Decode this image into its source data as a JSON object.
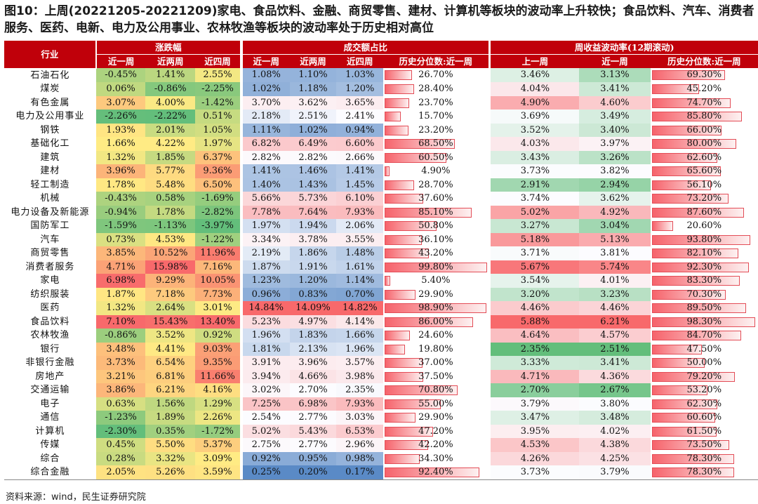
{
  "title": "图10：上周(20221205-20221209)家电、食品饮料、金融、商贸零售、建材、计算机等板块的波动率上升较快；食品饮料、汽车、消费者服务、医药、电新、电力及公用事业、农林牧渔等板块的波动率处于历史相对高位",
  "source": "资料来源：wind，民生证券研究院",
  "headers": {
    "industry": "行业",
    "group_change": "涨跌幅",
    "group_turnover": "成交额占比",
    "group_vol": "周收益波动率(12期滚动)",
    "change_cols": [
      "近一周",
      "近两周",
      "近四周"
    ],
    "turnover_cols": [
      "近一周",
      "近两周",
      "近四周",
      "历史分位数:近一周"
    ],
    "vol_cols": [
      "上一周",
      "近一周",
      "历史分位数:近一周"
    ]
  },
  "rows": [
    {
      "name": "石油石化",
      "c1": "-0.45%",
      "c2": "1.41%",
      "c4": "2.55%",
      "t1": "1.08%",
      "t2": "1.10%",
      "t4": "1.03%",
      "tp": "26.70%",
      "v0": "3.46%",
      "v1": "3.13%",
      "vp": "69.30%"
    },
    {
      "name": "煤炭",
      "c1": "0.06%",
      "c2": "-0.86%",
      "c4": "-2.25%",
      "t1": "1.02%",
      "t2": "1.18%",
      "t4": "1.20%",
      "tp": "28.40%",
      "v0": "4.04%",
      "v1": "3.41%",
      "vp": "45.20%"
    },
    {
      "name": "有色金属",
      "c1": "3.07%",
      "c2": "4.00%",
      "c4": "-1.42%",
      "t1": "3.70%",
      "t2": "3.62%",
      "t4": "3.65%",
      "tp": "23.70%",
      "v0": "4.90%",
      "v1": "4.60%",
      "vp": "74.70%"
    },
    {
      "name": "电力及公用事业",
      "c1": "-2.26%",
      "c2": "-2.22%",
      "c4": "0.51%",
      "t1": "2.18%",
      "t2": "2.51%",
      "t4": "2.41%",
      "tp": "15.70%",
      "v0": "3.69%",
      "v1": "3.49%",
      "vp": "85.80%"
    },
    {
      "name": "钢铁",
      "c1": "1.93%",
      "c2": "2.01%",
      "c4": "1.05%",
      "t1": "1.11%",
      "t2": "1.02%",
      "t4": "0.94%",
      "tp": "23.20%",
      "v0": "3.52%",
      "v1": "3.40%",
      "vp": "66.00%"
    },
    {
      "name": "基础化工",
      "c1": "1.66%",
      "c2": "4.22%",
      "c4": "1.97%",
      "t1": "6.82%",
      "t2": "6.49%",
      "t4": "6.60%",
      "tp": "68.50%",
      "v0": "4.03%",
      "v1": "3.97%",
      "vp": "80.00%"
    },
    {
      "name": "建筑",
      "c1": "1.32%",
      "c2": "1.85%",
      "c4": "6.37%",
      "t1": "2.82%",
      "t2": "2.82%",
      "t4": "2.66%",
      "tp": "60.50%",
      "v0": "3.43%",
      "v1": "3.26%",
      "vp": "62.60%"
    },
    {
      "name": "建材",
      "c1": "3.96%",
      "c2": "5.77%",
      "c4": "9.36%",
      "t1": "1.41%",
      "t2": "1.46%",
      "t4": "1.41%",
      "tp": "4.90%",
      "v0": "3.73%",
      "v1": "3.82%",
      "vp": "65.60%"
    },
    {
      "name": "轻工制造",
      "c1": "1.78%",
      "c2": "5.48%",
      "c4": "6.50%",
      "t1": "1.40%",
      "t2": "1.43%",
      "t4": "1.45%",
      "tp": "28.70%",
      "v0": "2.91%",
      "v1": "2.94%",
      "vp": "56.10%"
    },
    {
      "name": "机械",
      "c1": "-0.43%",
      "c2": "0.58%",
      "c4": "-1.69%",
      "t1": "5.66%",
      "t2": "5.73%",
      "t4": "6.10%",
      "tp": "37.60%",
      "v0": "3.74%",
      "v1": "3.62%",
      "vp": "73.20%"
    },
    {
      "name": "电力设备及新能源",
      "c1": "-0.94%",
      "c2": "1.78%",
      "c4": "-2.82%",
      "t1": "7.78%",
      "t2": "7.64%",
      "t4": "7.93%",
      "tp": "85.10%",
      "v0": "5.02%",
      "v1": "4.92%",
      "vp": "87.60%"
    },
    {
      "name": "国防军工",
      "c1": "-1.59%",
      "c2": "-1.13%",
      "c4": "-3.97%",
      "t1": "1.97%",
      "t2": "1.94%",
      "t4": "2.06%",
      "tp": "50.80%",
      "v0": "3.27%",
      "v1": "3.04%",
      "vp": "20.60%"
    },
    {
      "name": "汽车",
      "c1": "0.73%",
      "c2": "4.53%",
      "c4": "-1.22%",
      "t1": "3.34%",
      "t2": "3.78%",
      "t4": "3.55%",
      "tp": "36.10%",
      "v0": "5.18%",
      "v1": "5.13%",
      "vp": "93.80%"
    },
    {
      "name": "商贸零售",
      "c1": "3.85%",
      "c2": "10.52%",
      "c4": "11.96%",
      "t1": "2.19%",
      "t2": "1.86%",
      "t4": "1.48%",
      "tp": "43.20%",
      "v0": "3.71%",
      "v1": "3.81%",
      "vp": "82.10%"
    },
    {
      "name": "消费者服务",
      "c1": "4.71%",
      "c2": "15.98%",
      "c4": "7.16%",
      "t1": "1.87%",
      "t2": "1.91%",
      "t4": "1.61%",
      "tp": "99.80%",
      "v0": "5.67%",
      "v1": "5.74%",
      "vp": "92.30%"
    },
    {
      "name": "家电",
      "c1": "6.98%",
      "c2": "9.29%",
      "c4": "10.05%",
      "t1": "1.23%",
      "t2": "1.20%",
      "t4": "1.14%",
      "tp": "5.40%",
      "v0": "3.54%",
      "v1": "4.01%",
      "vp": "83.30%"
    },
    {
      "name": "纺织服装",
      "c1": "1.87%",
      "c2": "7.18%",
      "c4": "7.73%",
      "t1": "0.96%",
      "t2": "0.83%",
      "t4": "0.70%",
      "tp": "29.90%",
      "v0": "3.20%",
      "v1": "3.23%",
      "vp": "70.30%"
    },
    {
      "name": "医药",
      "c1": "1.32%",
      "c2": "2.64%",
      "c4": "3.01%",
      "t1": "14.84%",
      "t2": "14.09%",
      "t4": "14.82%",
      "tp": "98.90%",
      "v0": "4.46%",
      "v1": "4.46%",
      "vp": "89.50%"
    },
    {
      "name": "食品饮料",
      "c1": "7.10%",
      "c2": "15.43%",
      "c4": "13.40%",
      "t1": "5.23%",
      "t2": "4.97%",
      "t4": "4.14%",
      "tp": "86.00%",
      "v0": "5.88%",
      "v1": "6.21%",
      "vp": "98.30%"
    },
    {
      "name": "农林牧渔",
      "c1": "-0.86%",
      "c2": "3.52%",
      "c4": "0.92%",
      "t1": "1.96%",
      "t2": "1.83%",
      "t4": "1.66%",
      "tp": "24.60%",
      "v0": "4.64%",
      "v1": "4.57%",
      "vp": "84.70%"
    },
    {
      "name": "银行",
      "c1": "3.48%",
      "c2": "4.41%",
      "c4": "9.03%",
      "t1": "1.81%",
      "t2": "2.13%",
      "t4": "1.96%",
      "tp": "19.80%",
      "v0": "2.35%",
      "v1": "2.51%",
      "vp": "47.50%"
    },
    {
      "name": "非银行金融",
      "c1": "3.73%",
      "c2": "6.54%",
      "c4": "9.35%",
      "t1": "3.91%",
      "t2": "3.96%",
      "t4": "3.57%",
      "tp": "37.00%",
      "v0": "3.33%",
      "v1": "3.41%",
      "vp": "50.00%"
    },
    {
      "name": "房地产",
      "c1": "3.21%",
      "c2": "6.81%",
      "c4": "11.66%",
      "t1": "3.94%",
      "t2": "4.66%",
      "t4": "3.98%",
      "tp": "37.50%",
      "v0": "4.71%",
      "v1": "4.36%",
      "vp": "79.20%"
    },
    {
      "name": "交通运输",
      "c1": "3.86%",
      "c2": "6.21%",
      "c4": "4.16%",
      "t1": "3.02%",
      "t2": "2.70%",
      "t4": "2.35%",
      "tp": "70.80%",
      "v0": "2.70%",
      "v1": "2.67%",
      "vp": "53.20%"
    },
    {
      "name": "电子",
      "c1": "0.63%",
      "c2": "1.56%",
      "c4": "1.29%",
      "t1": "7.25%",
      "t2": "6.98%",
      "t4": "7.93%",
      "tp": "55.00%",
      "v0": "3.79%",
      "v1": "3.80%",
      "vp": "62.30%"
    },
    {
      "name": "通信",
      "c1": "-1.23%",
      "c2": "1.89%",
      "c4": "2.26%",
      "t1": "2.54%",
      "t2": "2.77%",
      "t4": "3.03%",
      "tp": "29.90%",
      "v0": "3.47%",
      "v1": "3.48%",
      "vp": "60.60%"
    },
    {
      "name": "计算机",
      "c1": "-2.30%",
      "c2": "0.35%",
      "c4": "-1.72%",
      "t1": "5.02%",
      "t2": "5.43%",
      "t4": "6.53%",
      "tp": "47.20%",
      "v0": "3.95%",
      "v1": "4.02%",
      "vp": "61.50%"
    },
    {
      "name": "传媒",
      "c1": "0.45%",
      "c2": "5.50%",
      "c4": "5.37%",
      "t1": "2.75%",
      "t2": "2.77%",
      "t4": "2.96%",
      "tp": "42.20%",
      "v0": "4.53%",
      "v1": "4.38%",
      "vp": "73.50%"
    },
    {
      "name": "综合",
      "c1": "0.28%",
      "c2": "3.32%",
      "c4": "3.09%",
      "t1": "0.92%",
      "t2": "0.95%",
      "t4": "0.98%",
      "tp": "34.30%",
      "v0": "4.26%",
      "v1": "4.25%",
      "vp": "78.30%"
    },
    {
      "name": "综合金融",
      "c1": "2.05%",
      "c2": "5.26%",
      "c4": "3.59%",
      "t1": "0.25%",
      "t2": "0.20%",
      "t4": "0.17%",
      "tp": "92.40%",
      "v0": "3.73%",
      "v1": "3.79%",
      "vp": "78.30%"
    }
  ]
}
